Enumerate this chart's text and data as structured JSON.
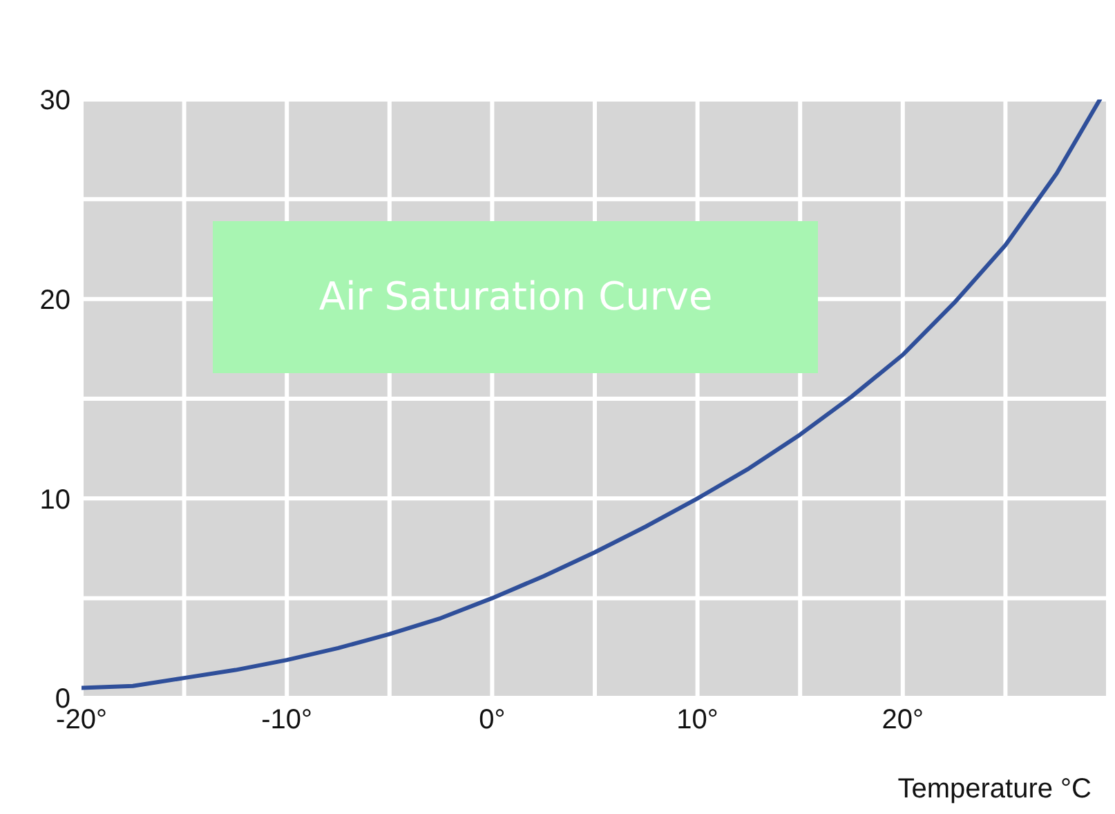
{
  "chart_data": {
    "type": "line",
    "title": "Air Saturation Curve",
    "xlabel": "Temperature °C",
    "x": [
      -20,
      -17.5,
      -15,
      -12.5,
      -10,
      -7.5,
      -5,
      -2.5,
      0,
      2.5,
      5,
      7.5,
      10,
      12.5,
      15,
      17.5,
      20,
      22.5,
      25,
      27.5,
      29.6
    ],
    "series": [
      {
        "color": "#2f4f9a",
        "values": [
          0.5,
          0.6,
          1.0,
          1.4,
          1.9,
          2.5,
          3.2,
          4.0,
          5.0,
          6.1,
          7.3,
          8.6,
          10.0,
          11.5,
          13.2,
          15.1,
          17.2,
          19.8,
          22.7,
          26.3,
          30
        ]
      }
    ],
    "xlim": [
      -20,
      30
    ],
    "xticks": [
      {
        "value": -20,
        "label": "-20°"
      },
      {
        "value": -15,
        "label": null
      },
      {
        "value": -10,
        "label": "-10°"
      },
      {
        "value": -5,
        "label": null
      },
      {
        "value": 0,
        "label": "0°"
      },
      {
        "value": 5,
        "label": null
      },
      {
        "value": 10,
        "label": "10°"
      },
      {
        "value": 15,
        "label": null
      },
      {
        "value": 20,
        "label": "20°"
      },
      {
        "value": 25,
        "label": null
      },
      {
        "value": 30,
        "label": null
      }
    ],
    "ylim": [
      0,
      30
    ],
    "yticks": [
      0,
      {
        "value": 5,
        "label": null
      },
      10,
      {
        "value": 15,
        "label": null
      },
      20,
      {
        "value": 25,
        "label": null
      },
      30
    ],
    "grid": true,
    "marker": "none",
    "line_style": "solid"
  }
}
